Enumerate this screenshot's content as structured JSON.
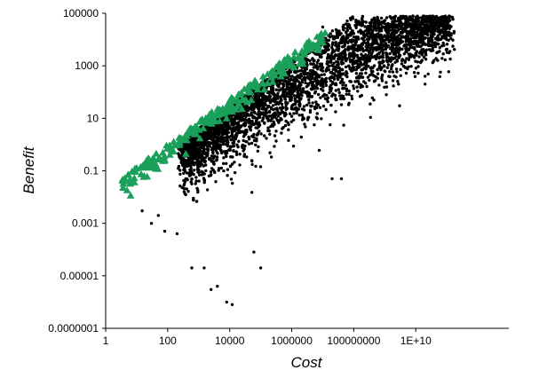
{
  "chart_data": {
    "type": "scatter",
    "title": "",
    "xlabel": "Cost",
    "ylabel": "Benefit",
    "x_scale": "log",
    "y_scale": "log",
    "xlim": [
      1,
      10000000000000
    ],
    "ylim": [
      1e-07,
      100000
    ],
    "x_ticks": [
      1,
      100,
      10000,
      1000000,
      100000000,
      10000000000
    ],
    "x_tick_labels": [
      "1",
      "100",
      "10000",
      "1000000",
      "100000000",
      "1E+10"
    ],
    "y_ticks": [
      1e-07,
      1e-05,
      0.001,
      0.1,
      10,
      1000,
      100000
    ],
    "y_tick_labels": [
      "0.0000001",
      "0.00001",
      "0.001",
      "0.1",
      "10",
      "1000",
      "100000"
    ],
    "grid": false,
    "legend": "none",
    "series": [
      {
        "marker": "circle",
        "color": "#000000",
        "cloud": {
          "count": 5200,
          "log_x_min": 0.8,
          "log_x_max": 11.5,
          "slope": 0.62,
          "intercept": -1.45,
          "spread": 0.85
        },
        "points": [
          [
            8000,
            1e-06
          ],
          [
            12000,
            8e-07
          ],
          [
            4000,
            4e-06
          ],
          [
            2500,
            3e-06
          ],
          [
            600,
            2e-05
          ],
          [
            1500,
            2e-05
          ],
          [
            60000,
            8e-05
          ],
          [
            100000,
            2e-05
          ],
          [
            20000000,
            0.05
          ],
          [
            40000000,
            0.05
          ],
          [
            10000000000,
            3000
          ],
          [
            30000000000,
            4000
          ],
          [
            5000000000,
            10000
          ],
          [
            20000000000,
            400
          ],
          [
            10000000,
            30000
          ],
          [
            30000000,
            20000
          ],
          [
            300000000,
            20000
          ],
          [
            20000000000,
            200
          ],
          [
            3000000000,
            30
          ],
          [
            15,
            0.003
          ],
          [
            30,
            0.001
          ],
          [
            50,
            0.002
          ],
          [
            80,
            0.0005
          ],
          [
            200,
            0.0004
          ]
        ]
      },
      {
        "marker": "triangle",
        "color": "#1aa05a",
        "frontier": {
          "count": 260,
          "log_x_min": 0.5,
          "log_x_max": 7.1,
          "slope": 0.86,
          "intercept": -1.7,
          "spread": 0.3
        }
      }
    ]
  }
}
